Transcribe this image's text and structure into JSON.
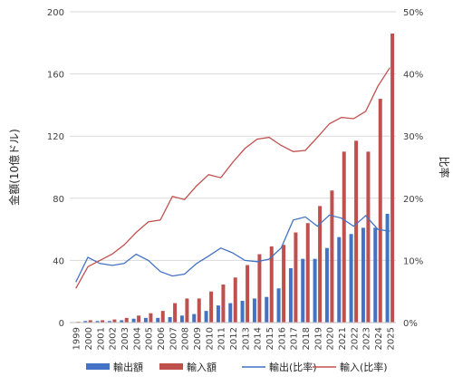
{
  "chart_data": {
    "type": "bar",
    "title": "",
    "xlabel": "",
    "ylabel": "金額(10億ドル)",
    "y2label": "比率",
    "ylim": [
      0,
      200
    ],
    "yticks": [
      0,
      40,
      80,
      120,
      160,
      200
    ],
    "y2lim": [
      0,
      50
    ],
    "y2ticks": [
      "0%",
      "10%",
      "20%",
      "30%",
      "40%",
      "50%"
    ],
    "grid": true,
    "legend_position": "bottom",
    "categories": [
      "1999",
      "2000",
      "2001",
      "2002",
      "2003",
      "2004",
      "2005",
      "2006",
      "2007",
      "2008",
      "2009",
      "2010",
      "2011",
      "2012",
      "2013",
      "2014",
      "2015",
      "2016",
      "2017",
      "2018",
      "2019",
      "2020",
      "2021",
      "2022",
      "2023",
      "2024",
      "2025"
    ],
    "series": [
      {
        "name": "輸出額",
        "kind": "bar",
        "axis": "left",
        "color": "#4472C4",
        "values": [
          0.3,
          1,
          1,
          1,
          1.5,
          2.5,
          3,
          3,
          3.5,
          4.5,
          5.5,
          7.5,
          11,
          12.5,
          14,
          15.5,
          16.5,
          22,
          35,
          41,
          41,
          48,
          55,
          57,
          61,
          61,
          70
        ]
      },
      {
        "name": "輸入額",
        "kind": "bar",
        "axis": "left",
        "color": "#C0504D",
        "values": [
          0.5,
          1.5,
          1.5,
          2,
          3,
          4.5,
          6,
          7.5,
          12.5,
          15.5,
          15.5,
          20,
          24.5,
          29,
          37,
          44,
          49,
          50,
          58,
          64,
          75,
          85,
          110,
          117,
          110,
          144,
          186
        ]
      },
      {
        "name": "輸出(比率)",
        "kind": "line",
        "axis": "right",
        "color": "#4472C4",
        "values": [
          6.5,
          10.5,
          9.5,
          9.2,
          9.5,
          11,
          10,
          8.2,
          7.5,
          7.8,
          9.5,
          10.7,
          12,
          11.2,
          10,
          9.8,
          10.2,
          12,
          16.5,
          17,
          15.5,
          17.3,
          16.8,
          15.5,
          17.2,
          15,
          14.7
        ]
      },
      {
        "name": "輸入(比率)",
        "kind": "line",
        "axis": "right",
        "color": "#C0504D",
        "values": [
          5.5,
          9,
          10,
          11,
          12.5,
          14.5,
          16.2,
          16.5,
          20.3,
          19.8,
          22,
          23.8,
          23.3,
          25.8,
          28,
          29.5,
          29.8,
          28.5,
          27.5,
          27.7,
          29.8,
          32,
          33,
          32.8,
          34,
          38,
          41
        ]
      }
    ]
  }
}
